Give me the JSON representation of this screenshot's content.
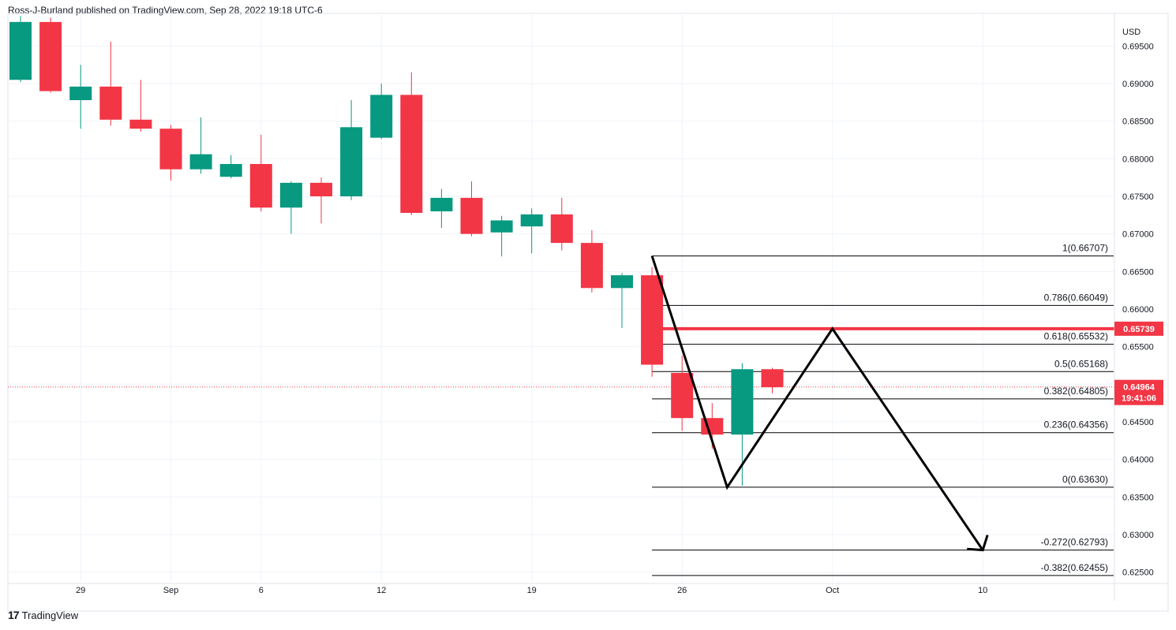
{
  "header": {
    "publisher_line": "Ross-J-Burland published on TradingView.com, Sep 28, 2022 19:18 UTC-6"
  },
  "branding": {
    "logo_text": "TradingView",
    "logo_glyph": "17"
  },
  "colors": {
    "up": "#089981",
    "down": "#f23645",
    "grid": "#f0f3fa",
    "level_line": "#f23645",
    "fib_line": "#000000",
    "text": "#131722"
  },
  "chart_data": {
    "type": "candlestick",
    "currency": "USD",
    "ylim": [
      0.6237,
      0.6985
    ],
    "y_ticks": [
      0.695,
      0.69,
      0.685,
      0.68,
      0.675,
      0.67,
      0.665,
      0.66,
      0.655,
      0.65,
      0.645,
      0.64,
      0.635,
      0.63,
      0.625
    ],
    "y_tick_labels": [
      "0.69500",
      "0.69000",
      "0.68500",
      "0.68000",
      "0.67500",
      "0.67000",
      "0.66500",
      "0.66000",
      "0.65500",
      "0.65000",
      "0.64500",
      "0.64000",
      "0.63500",
      "0.63000",
      "0.62500"
    ],
    "x_ticks": [
      {
        "label": "29",
        "i": 2
      },
      {
        "label": "Sep",
        "i": 5
      },
      {
        "label": "6",
        "i": 8
      },
      {
        "label": "12",
        "i": 12
      },
      {
        "label": "19",
        "i": 17
      },
      {
        "label": "26",
        "i": 22
      },
      {
        "label": "Oct",
        "i": 27
      },
      {
        "label": "10",
        "i": 32
      }
    ],
    "candles": [
      {
        "o": 0.6905,
        "h": 0.699,
        "l": 0.6902,
        "c": 0.6982
      },
      {
        "o": 0.6982,
        "h": 0.6988,
        "l": 0.6888,
        "c": 0.689
      },
      {
        "o": 0.6878,
        "h": 0.6925,
        "l": 0.684,
        "c": 0.6896
      },
      {
        "o": 0.6896,
        "h": 0.6956,
        "l": 0.6844,
        "c": 0.6852
      },
      {
        "o": 0.6852,
        "h": 0.6905,
        "l": 0.6836,
        "c": 0.684
      },
      {
        "o": 0.684,
        "h": 0.6845,
        "l": 0.6771,
        "c": 0.6786
      },
      {
        "o": 0.6786,
        "h": 0.6855,
        "l": 0.678,
        "c": 0.6806
      },
      {
        "o": 0.6776,
        "h": 0.6805,
        "l": 0.6774,
        "c": 0.6793
      },
      {
        "o": 0.6793,
        "h": 0.6832,
        "l": 0.673,
        "c": 0.6735
      },
      {
        "o": 0.6735,
        "h": 0.677,
        "l": 0.67,
        "c": 0.6768
      },
      {
        "o": 0.6768,
        "h": 0.6775,
        "l": 0.6714,
        "c": 0.675
      },
      {
        "o": 0.675,
        "h": 0.6878,
        "l": 0.6745,
        "c": 0.6842
      },
      {
        "o": 0.6828,
        "h": 0.69,
        "l": 0.6826,
        "c": 0.6885
      },
      {
        "o": 0.6885,
        "h": 0.6915,
        "l": 0.6725,
        "c": 0.6728
      },
      {
        "o": 0.673,
        "h": 0.676,
        "l": 0.6708,
        "c": 0.6748
      },
      {
        "o": 0.6748,
        "h": 0.677,
        "l": 0.6697,
        "c": 0.67
      },
      {
        "o": 0.6702,
        "h": 0.6724,
        "l": 0.667,
        "c": 0.6718
      },
      {
        "o": 0.671,
        "h": 0.6734,
        "l": 0.6674,
        "c": 0.6726
      },
      {
        "o": 0.6726,
        "h": 0.6748,
        "l": 0.6678,
        "c": 0.6688
      },
      {
        "o": 0.6688,
        "h": 0.6705,
        "l": 0.6622,
        "c": 0.6628
      },
      {
        "o": 0.6628,
        "h": 0.6648,
        "l": 0.6575,
        "c": 0.6645
      },
      {
        "o": 0.6645,
        "h": 0.6656,
        "l": 0.651,
        "c": 0.6526
      },
      {
        "o": 0.6515,
        "h": 0.6538,
        "l": 0.6438,
        "c": 0.6455
      },
      {
        "o": 0.6455,
        "h": 0.6475,
        "l": 0.6414,
        "c": 0.6433
      },
      {
        "o": 0.6433,
        "h": 0.6528,
        "l": 0.6365,
        "c": 0.652
      },
      {
        "o": 0.652,
        "h": 0.6522,
        "l": 0.6488,
        "c": 0.6496
      }
    ],
    "fib_levels": [
      {
        "ratio": "1",
        "value": 0.66707,
        "label": "1(0.66707)"
      },
      {
        "ratio": "0.786",
        "value": 0.66049,
        "label": "0.786(0.66049)"
      },
      {
        "ratio": "0.618",
        "value": 0.65532,
        "label": "0.618(0.65532)"
      },
      {
        "ratio": "0.5",
        "value": 0.65168,
        "label": "0.5(0.65168)"
      },
      {
        "ratio": "0.382",
        "value": 0.64805,
        "label": "0.382(0.64805)"
      },
      {
        "ratio": "0.236",
        "value": 0.64356,
        "label": "0.236(0.64356)"
      },
      {
        "ratio": "0",
        "value": 0.6363,
        "label": "0(0.63630)"
      },
      {
        "ratio": "-0.272",
        "value": 0.62793,
        "label": "-0.272(0.62793)"
      },
      {
        "ratio": "-0.382",
        "value": 0.62455,
        "label": "-0.382(0.62455)"
      }
    ],
    "fib_start_i": 21,
    "resistance_level": {
      "value": 0.65739,
      "label": "0.65739"
    },
    "current_price": {
      "value": 0.64964,
      "label": "0.64964",
      "countdown": "19:41:06"
    },
    "projection_path": [
      {
        "i": 21,
        "v": 0.66707
      },
      {
        "i": 23.5,
        "v": 0.6363
      },
      {
        "i": 27,
        "v": 0.65739
      },
      {
        "i": 32,
        "v": 0.62793
      }
    ],
    "projection_arrow": true
  }
}
